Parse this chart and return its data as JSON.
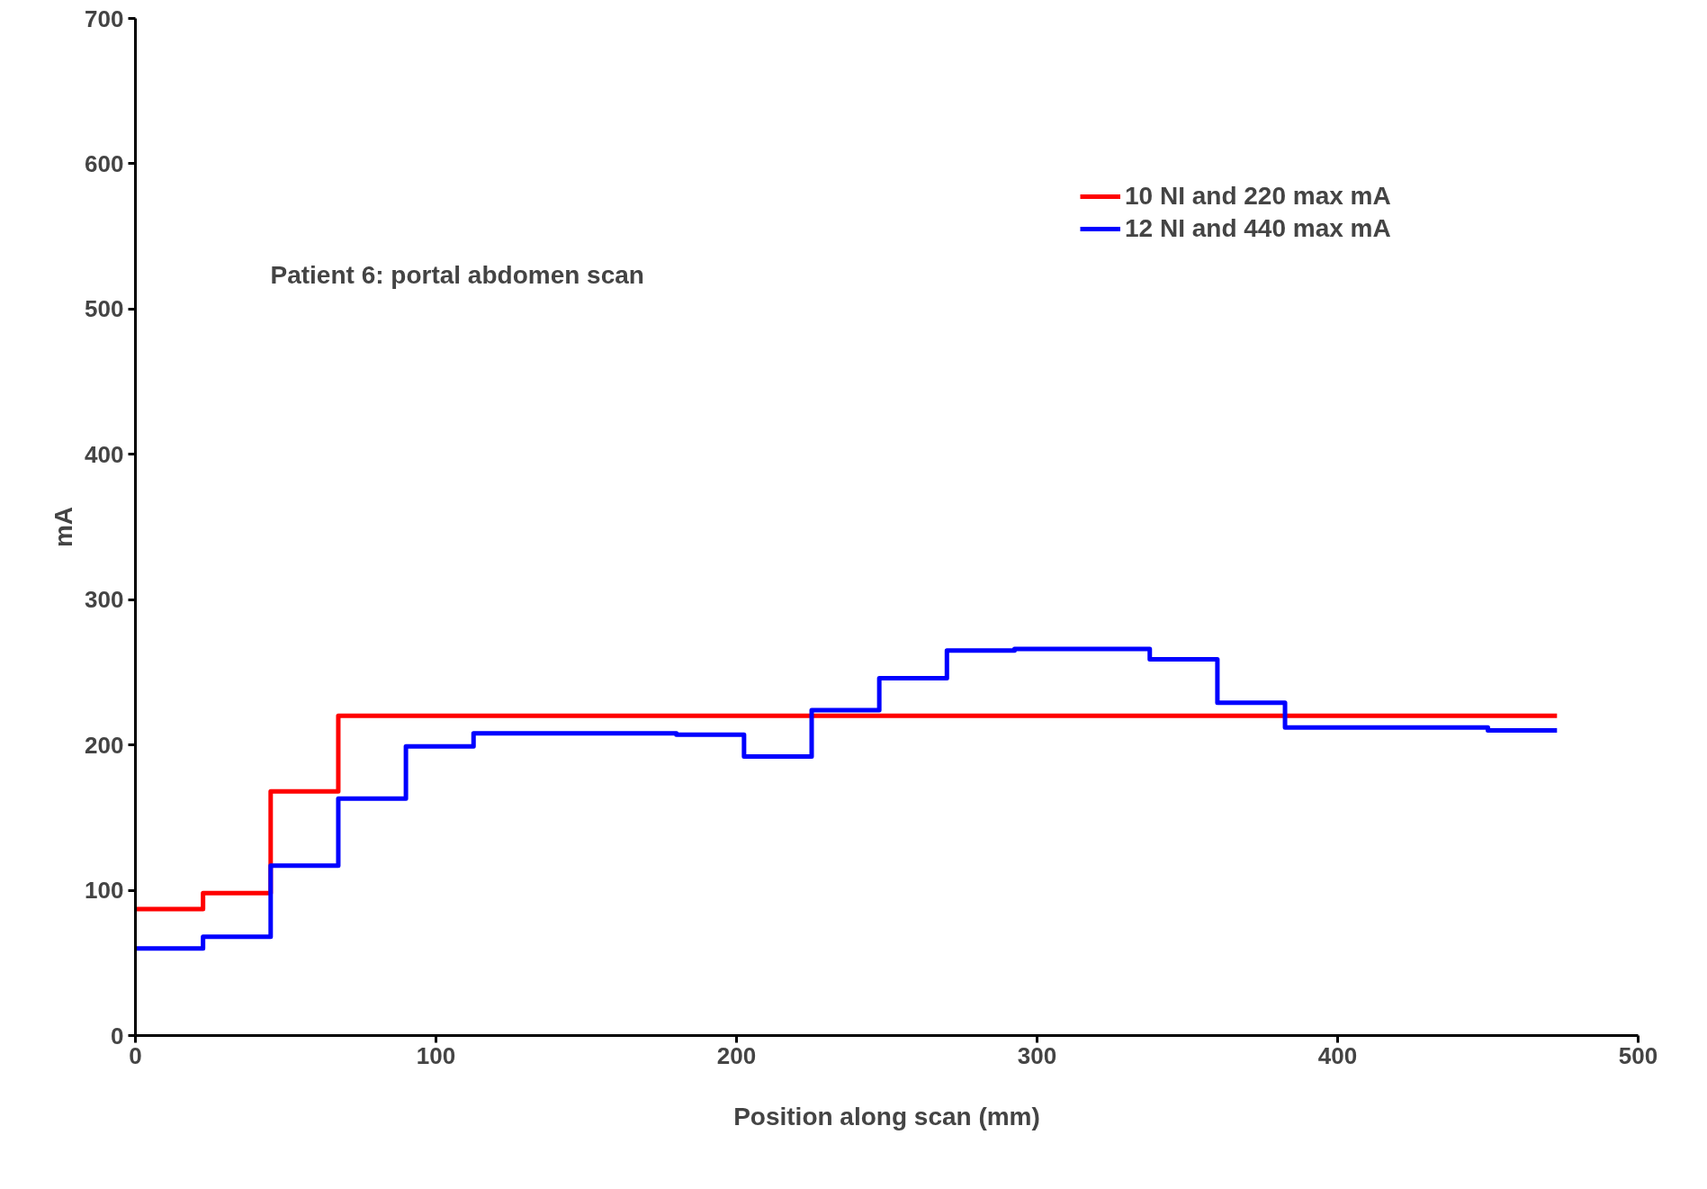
{
  "chart_data": {
    "type": "step",
    "xlabel": "Position along scan (mm)",
    "ylabel": "mA",
    "annotations": [
      "Patient 6: portal abdomen scan"
    ],
    "xlim": [
      0,
      500
    ],
    "xticks": [
      0,
      100,
      200,
      300,
      400,
      500
    ],
    "ylim": [
      0,
      700
    ],
    "yticks": [
      0,
      100,
      200,
      300,
      400,
      500,
      600,
      700
    ],
    "grid": false,
    "legend": "top right",
    "line_style": "solid",
    "marker": "none",
    "series": [
      {
        "name": "10 NI and 220 max mA",
        "color": "#ff0000",
        "x": [
          0,
          22.5,
          45,
          67.5,
          473
        ],
        "values": [
          87,
          98,
          168,
          220,
          220
        ]
      },
      {
        "name": "12 NI and 440 max mA",
        "color": "#0000ff",
        "x": [
          0,
          22.5,
          45,
          67.5,
          90,
          112.5,
          180,
          202.5,
          225,
          247.5,
          270,
          292.5,
          337.5,
          360,
          382.5,
          450,
          473
        ],
        "values": [
          60,
          68,
          117,
          163,
          199,
          208,
          207,
          192,
          224,
          246,
          265,
          266,
          259,
          229,
          212,
          210,
          210
        ]
      }
    ]
  }
}
